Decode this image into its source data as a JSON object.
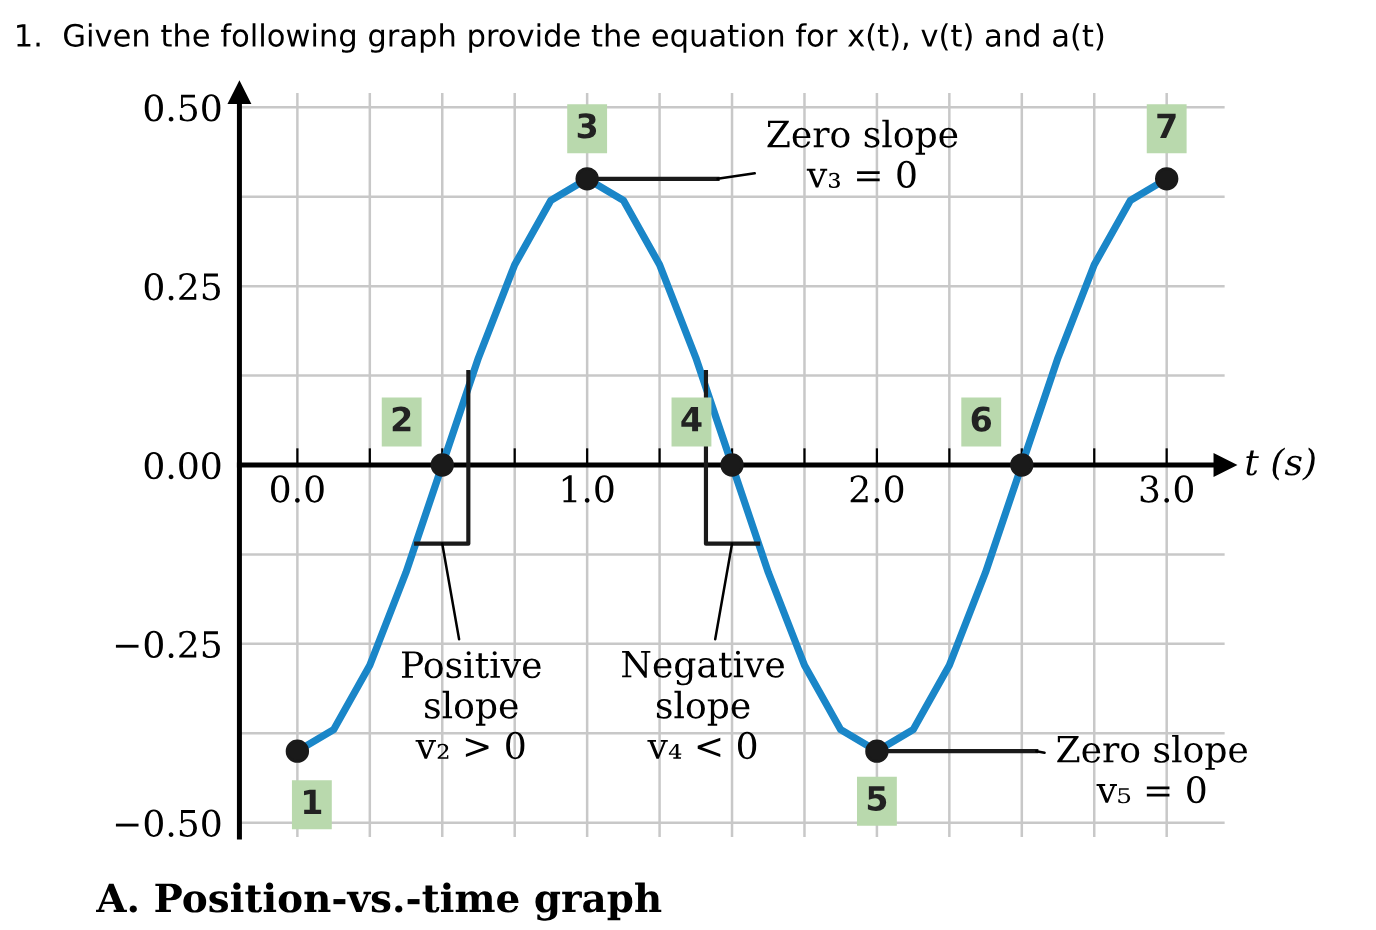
{
  "chart_data": {
    "type": "line",
    "title": "1.  Given the following graph provide the equation for x(t), v(t) and a(t)",
    "xlabel": "t (s)",
    "xlim": [
      -0.2,
      3.2
    ],
    "ylim": [
      -0.52,
      0.52
    ],
    "xticks": [
      {
        "value": 0,
        "label": "0.0"
      },
      {
        "value": 0.25,
        "label": null
      },
      {
        "value": 0.5,
        "label": null
      },
      {
        "value": 0.75,
        "label": null
      },
      {
        "value": 1,
        "label": "1.0"
      },
      {
        "value": 1.25,
        "label": null
      },
      {
        "value": 1.5,
        "label": null
      },
      {
        "value": 1.75,
        "label": null
      },
      {
        "value": 2,
        "label": "2.0"
      },
      {
        "value": 2.25,
        "label": null
      },
      {
        "value": 2.5,
        "label": null
      },
      {
        "value": 2.75,
        "label": null
      },
      {
        "value": 3,
        "label": "3.0"
      }
    ],
    "yticks": [
      {
        "value": -0.5,
        "label": "−0.50"
      },
      {
        "value": -0.375,
        "label": null
      },
      {
        "value": -0.25,
        "label": "−0.25"
      },
      {
        "value": -0.125,
        "label": null
      },
      {
        "value": 0,
        "label": "0.00"
      },
      {
        "value": 0.125,
        "label": null
      },
      {
        "value": 0.25,
        "label": "0.25"
      },
      {
        "value": 0.375,
        "label": null
      },
      {
        "value": 0.5,
        "label": "0.50"
      }
    ],
    "grid": true,
    "series": [
      {
        "color": "#1a86c8",
        "x": [
          0,
          0.125,
          0.25,
          0.375,
          0.5,
          0.625,
          0.75,
          0.875,
          1,
          1.125,
          1.25,
          1.375,
          1.5,
          1.625,
          1.75,
          1.875,
          2,
          2.125,
          2.25,
          2.375,
          2.5,
          2.625,
          2.75,
          2.875,
          3
        ],
        "values": [
          -0.4,
          -0.37,
          -0.28,
          -0.15,
          0,
          0.15,
          0.28,
          0.37,
          0.4,
          0.37,
          0.28,
          0.15,
          0,
          -0.15,
          -0.28,
          -0.37,
          -0.4,
          -0.37,
          -0.28,
          -0.15,
          0,
          0.15,
          0.28,
          0.37,
          0.4
        ]
      },
      {
        "type": "scatter",
        "color": "#1a1a1a",
        "marker": "circle",
        "x": [
          0,
          0.5,
          1,
          1.5,
          2,
          2.5,
          3
        ],
        "values": [
          -0.4,
          0,
          0.4,
          0,
          -0.4,
          0,
          0.4
        ]
      },
      {
        "type": "line",
        "color": "#1a1a1a",
        "x": [
          1,
          1.45
        ],
        "values": [
          0.4,
          0.4
        ]
      },
      {
        "type": "line",
        "color": "#1a1a1a",
        "x": [
          2,
          2.55
        ],
        "values": [
          -0.4,
          -0.4
        ]
      },
      {
        "type": "line",
        "color": "#1a1a1a",
        "x": [
          0.41,
          0.59,
          0.59
        ],
        "values": [
          -0.11,
          -0.11,
          0.13
        ]
      },
      {
        "type": "line",
        "color": "#1a1a1a",
        "x": [
          1.41,
          1.41,
          1.59
        ],
        "values": [
          0.13,
          -0.11,
          -0.11
        ]
      }
    ],
    "annotations": [
      {
        "text": "1",
        "x": 0,
        "y": -0.4
      },
      {
        "text": "2",
        "x": 0.5,
        "y": 0
      },
      {
        "text": "3",
        "x": 1,
        "y": 0.4
      },
      {
        "text": "4",
        "x": 1.5,
        "y": 0
      },
      {
        "text": "5",
        "x": 2,
        "y": -0.4
      },
      {
        "text": "6",
        "x": 2.5,
        "y": 0
      },
      {
        "text": "7",
        "x": 3,
        "y": 0.4
      },
      {
        "text": "Zero slope\nv₃ = 0",
        "x": 1.45,
        "y": 0.4
      },
      {
        "text": "Positive\nslope\nv₂ > 0",
        "x": 0.5,
        "y": -0.11
      },
      {
        "text": "Negative\nslope\nv₄ < 0",
        "x": 1.5,
        "y": -0.11
      },
      {
        "text": "Zero slope\nv₅ = 0",
        "x": 2.55,
        "y": -0.4
      },
      "A. Position-vs.-time graph"
    ]
  }
}
